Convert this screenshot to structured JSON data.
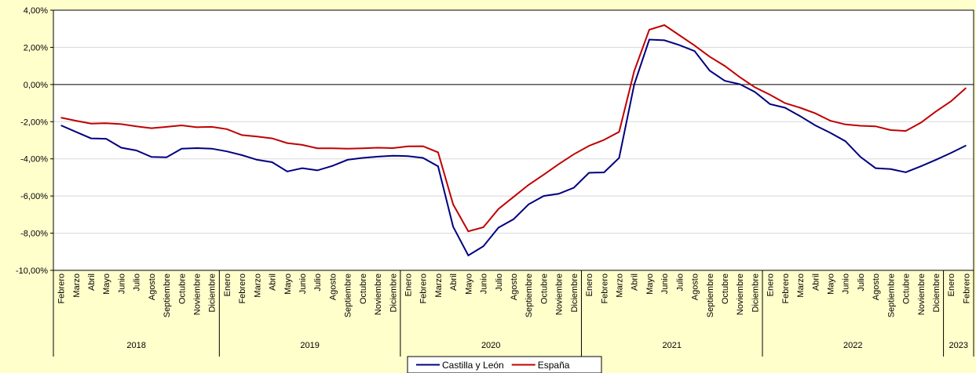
{
  "chart_data": {
    "type": "line",
    "categories": [
      "Febrero",
      "Marzo",
      "Abril",
      "Mayo",
      "Junio",
      "Julio",
      "Agosto",
      "Septiembre",
      "Octubre",
      "Noviembre",
      "Diciembre",
      "Enero",
      "Febrero",
      "Marzo",
      "Abril",
      "Mayo",
      "Junio",
      "Julio",
      "Agosto",
      "Septiembre",
      "Octubre",
      "Noviembre",
      "Diciembre",
      "Enero",
      "Febrero",
      "Marzo",
      "Abril",
      "Mayo",
      "Junio",
      "Julio",
      "Agosto",
      "Septiembre",
      "Octubre",
      "Noviembre",
      "Diciembre",
      "Enero",
      "Febrero",
      "Marzo",
      "Abril",
      "Mayo",
      "Junio",
      "Julio",
      "Agosto",
      "Septiembre",
      "Octubre",
      "Noviembre",
      "Diciembre",
      "Enero",
      "Febrero",
      "Marzo",
      "Abril",
      "Mayo",
      "Junio",
      "Julio",
      "Agosto",
      "Septiembre",
      "Octubre",
      "Noviembre",
      "Diciembre",
      "Enero",
      "Febrero"
    ],
    "groups": [
      {
        "label": "2018",
        "count": 11
      },
      {
        "label": "2019",
        "count": 12
      },
      {
        "label": "2020",
        "count": 12
      },
      {
        "label": "2021",
        "count": 12
      },
      {
        "label": "2022",
        "count": 12
      },
      {
        "label": "2023",
        "count": 2
      }
    ],
    "series": [
      {
        "name": "Castilla y León",
        "color": "#000080",
        "values": [
          -2.2,
          -2.55,
          -2.9,
          -2.92,
          -3.4,
          -3.55,
          -3.9,
          -3.92,
          -3.45,
          -3.42,
          -3.45,
          -3.6,
          -3.8,
          -4.05,
          -4.18,
          -4.68,
          -4.5,
          -4.62,
          -4.38,
          -4.05,
          -3.95,
          -3.88,
          -3.83,
          -3.85,
          -3.95,
          -4.4,
          -7.65,
          -9.2,
          -8.7,
          -7.7,
          -7.25,
          -6.45,
          -6.0,
          -5.88,
          -5.55,
          -4.75,
          -4.73,
          -3.95,
          0.0,
          2.42,
          2.38,
          2.12,
          1.8,
          0.75,
          0.2,
          0.02,
          -0.4,
          -1.05,
          -1.25,
          -1.7,
          -2.2,
          -2.6,
          -3.05,
          -3.9,
          -4.5,
          -4.55,
          -4.72,
          -4.4,
          -4.05,
          -3.68,
          -3.28
        ]
      },
      {
        "name": "España",
        "color": "#c00000",
        "values": [
          -1.78,
          -1.95,
          -2.1,
          -2.08,
          -2.13,
          -2.25,
          -2.35,
          -2.28,
          -2.2,
          -2.3,
          -2.28,
          -2.4,
          -2.72,
          -2.8,
          -2.9,
          -3.15,
          -3.25,
          -3.43,
          -3.43,
          -3.45,
          -3.43,
          -3.4,
          -3.42,
          -3.33,
          -3.32,
          -3.65,
          -6.45,
          -7.9,
          -7.68,
          -6.7,
          -6.05,
          -5.4,
          -4.85,
          -4.28,
          -3.75,
          -3.3,
          -2.98,
          -2.55,
          0.72,
          2.95,
          3.2,
          2.65,
          2.1,
          1.5,
          1.0,
          0.4,
          -0.15,
          -0.55,
          -1.0,
          -1.25,
          -1.55,
          -1.95,
          -2.15,
          -2.22,
          -2.25,
          -2.45,
          -2.5,
          -2.05,
          -1.45,
          -0.9,
          -0.18
        ]
      }
    ],
    "ylim": [
      -10,
      4
    ],
    "yticks": [
      {
        "value": 4,
        "label": "4,00%"
      },
      {
        "value": 2,
        "label": "2,00%"
      },
      {
        "value": 0,
        "label": "0,00%"
      },
      {
        "value": -2,
        "label": "-2,00%"
      },
      {
        "value": -4,
        "label": "-4,00%"
      },
      {
        "value": -6,
        "label": "-6,00%"
      },
      {
        "value": -8,
        "label": "-8,00%"
      },
      {
        "value": -10,
        "label": "-10,00%"
      }
    ],
    "grid": true,
    "legend": "bottom"
  }
}
